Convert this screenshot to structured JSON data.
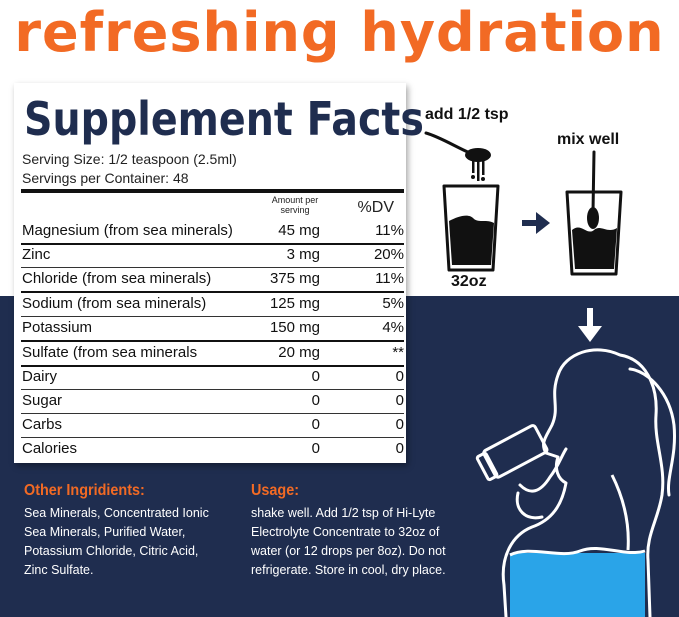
{
  "headline": "refreshing hydration",
  "facts": {
    "title": "Supplement Facts",
    "serving_size": "Serving Size: 1/2 teaspoon (2.5ml)",
    "servings_per_container": "Servings per Container: 48",
    "amount_header": "Amount per serving",
    "dv_header": "%DV",
    "rows": [
      {
        "name": "Magnesium (from sea minerals)",
        "amount": "45 mg",
        "dv": "11%"
      },
      {
        "name": "Zinc",
        "amount": "3 mg",
        "dv": "20%"
      },
      {
        "name": "Chloride (from sea minerals)",
        "amount": "375 mg",
        "dv": "11%"
      },
      {
        "name": "Sodium (from sea minerals)",
        "amount": "125 mg",
        "dv": "5%"
      },
      {
        "name": "Potassium",
        "amount": "150 mg",
        "dv": "4%"
      },
      {
        "name": "Sulfate (from sea minerals",
        "amount": "20 mg",
        "dv": "**"
      },
      {
        "name": "Dairy",
        "amount": "0",
        "dv": "0"
      },
      {
        "name": "Sugar",
        "amount": "0",
        "dv": "0"
      },
      {
        "name": "Carbs",
        "amount": "0",
        "dv": "0"
      },
      {
        "name": "Calories",
        "amount": "0",
        "dv": "0"
      }
    ]
  },
  "ingredients": {
    "title": "Other Ingridients:",
    "lines": [
      "Sea Minerals, Concentrated Ionic",
      "Sea Minerals, Purified Water,",
      "Potassium Chloride, Citric Acid,",
      "Zinc Sulfate."
    ]
  },
  "usage": {
    "title": "Usage:",
    "lines": [
      "shake well. Add 1/2 tsp of Hi-Lyte",
      "Electrolyte Concentrate to 32oz of",
      "water (or 12 drops per 8oz). Do not",
      "refrigerate. Store in cool, dry place."
    ]
  },
  "steps": {
    "add": "add 1/2 tsp",
    "mix": "mix well",
    "volume": "32oz"
  },
  "colors": {
    "accent_orange": "#f26a24",
    "navy": "#1f2d4f",
    "water_blue": "#2aa4e8"
  },
  "icons": [
    "spoon-icon",
    "glass-icon",
    "arrow-right-icon",
    "arrow-down-icon",
    "woman-drinking-illustration"
  ]
}
